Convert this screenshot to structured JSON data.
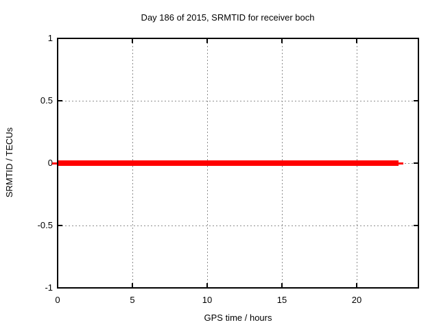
{
  "chart_data": {
    "type": "line",
    "title": "Day 186 of 2015, SRMTID for receiver boch",
    "xlabel": "GPS time / hours",
    "ylabel": "SRMTID / TECUs",
    "xlim": [
      0,
      24.2
    ],
    "ylim": [
      -1,
      1
    ],
    "xticks": [
      0,
      5,
      10,
      15,
      20
    ],
    "xtick_labels": [
      "0",
      "5",
      "10",
      "15",
      "20"
    ],
    "yticks": [
      1,
      0.5,
      0,
      -0.5,
      -1
    ],
    "ytick_labels": [
      "1",
      "0.5",
      "0",
      "-0.5",
      "-1"
    ],
    "grid": "dotted",
    "legend": "none",
    "series": [
      {
        "name": "SRMTID",
        "color": "#ff0000",
        "y_value": 0,
        "x_start": 0,
        "x_end": 22.8,
        "thin_tail_x": [
          22.8,
          23.15
        ],
        "thin_lead_x": [
          -0.37,
          0
        ]
      }
    ],
    "colors": {
      "background": "#ffffff",
      "border": "#000000",
      "grid": "#8c8c8c",
      "text": "#000000",
      "line": "#ff0000"
    }
  }
}
